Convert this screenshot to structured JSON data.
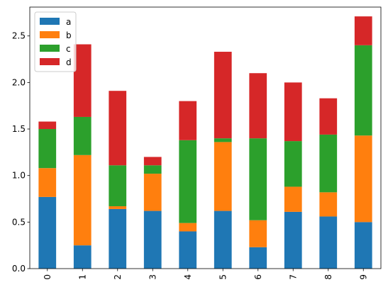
{
  "chart_data": {
    "type": "bar",
    "stacked": true,
    "categories": [
      "0",
      "1",
      "2",
      "3",
      "4",
      "5",
      "6",
      "7",
      "8",
      "9"
    ],
    "series": [
      {
        "name": "a",
        "color": "#1f77b4",
        "values": [
          0.77,
          0.25,
          0.64,
          0.62,
          0.4,
          0.62,
          0.23,
          0.61,
          0.56,
          0.5
        ]
      },
      {
        "name": "b",
        "color": "#ff7f0e",
        "values": [
          0.31,
          0.97,
          0.03,
          0.4,
          0.09,
          0.74,
          0.29,
          0.27,
          0.26,
          0.93
        ]
      },
      {
        "name": "c",
        "color": "#2ca02c",
        "values": [
          0.42,
          0.41,
          0.44,
          0.09,
          0.89,
          0.04,
          0.88,
          0.49,
          0.62,
          0.97
        ]
      },
      {
        "name": "d",
        "color": "#d62728",
        "values": [
          0.08,
          0.78,
          0.8,
          0.09,
          0.42,
          0.93,
          0.7,
          0.63,
          0.39,
          0.31
        ]
      }
    ],
    "ylim": [
      0,
      2.81
    ],
    "yticks": [
      0.0,
      0.5,
      1.0,
      1.5,
      2.0,
      2.5
    ],
    "ytick_labels": [
      "0.0",
      "0.5",
      "1.0",
      "1.5",
      "2.0",
      "2.5"
    ],
    "xtick_rotation": "vertical",
    "legend": {
      "placement": "top-left"
    },
    "grid": false
  }
}
